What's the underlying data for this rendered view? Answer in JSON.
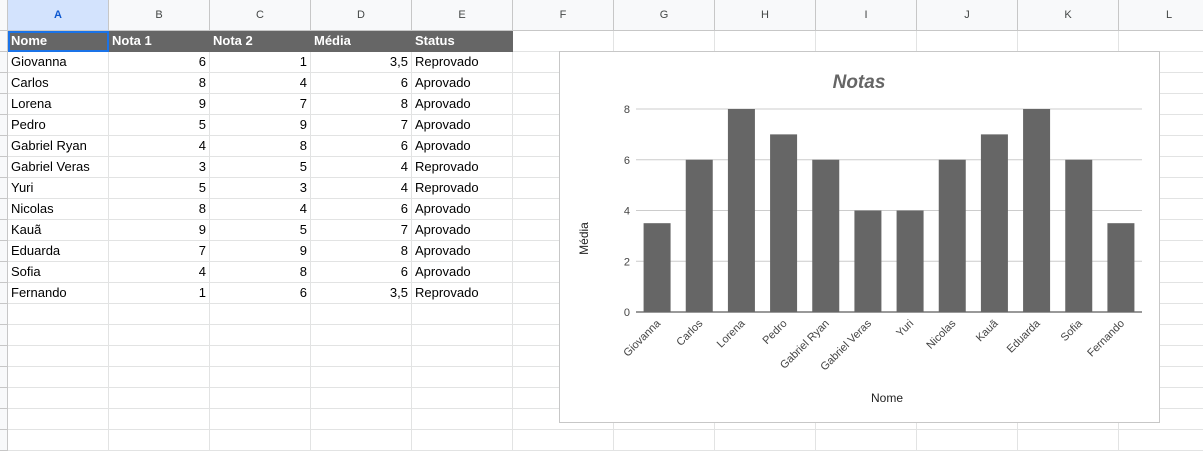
{
  "columns": [
    "A",
    "B",
    "C",
    "D",
    "E",
    "F",
    "G",
    "H",
    "I",
    "J",
    "K",
    "L"
  ],
  "table": {
    "headers": [
      "Nome",
      "Nota 1",
      "Nota 2",
      "Média",
      "Status"
    ],
    "rows": [
      [
        "Giovanna",
        "6",
        "1",
        "3,5",
        "Reprovado"
      ],
      [
        "Carlos",
        "8",
        "4",
        "6",
        "Aprovado"
      ],
      [
        "Lorena",
        "9",
        "7",
        "8",
        "Aprovado"
      ],
      [
        "Pedro",
        "5",
        "9",
        "7",
        "Aprovado"
      ],
      [
        "Gabriel Ryan",
        "4",
        "8",
        "6",
        "Aprovado"
      ],
      [
        "Gabriel Veras",
        "3",
        "5",
        "4",
        "Reprovado"
      ],
      [
        "Yuri",
        "5",
        "3",
        "4",
        "Reprovado"
      ],
      [
        "Nicolas",
        "8",
        "4",
        "6",
        "Aprovado"
      ],
      [
        "Kauã",
        "9",
        "5",
        "7",
        "Aprovado"
      ],
      [
        "Eduarda",
        "7",
        "9",
        "8",
        "Aprovado"
      ],
      [
        "Sofia",
        "4",
        "8",
        "6",
        "Aprovado"
      ],
      [
        "Fernando",
        "1",
        "6",
        "3,5",
        "Reprovado"
      ]
    ]
  },
  "chart_data": {
    "type": "bar",
    "title": "Notas",
    "xlabel": "Nome",
    "ylabel": "Média",
    "categories": [
      "Giovanna",
      "Carlos",
      "Lorena",
      "Pedro",
      "Gabriel Ryan",
      "Gabriel Veras",
      "Yuri",
      "Nicolas",
      "Kauã",
      "Eduarda",
      "Sofia",
      "Fernando"
    ],
    "values": [
      3.5,
      6,
      8,
      7,
      6,
      4,
      4,
      6,
      7,
      8,
      6,
      3.5
    ],
    "ylim": [
      0,
      8
    ],
    "yticks": [
      "0",
      "2",
      "4",
      "6",
      "8"
    ],
    "grid": true,
    "bar_color": "#666666"
  },
  "colors": {
    "header_fill": "#666666",
    "selection": "#1a73e8"
  }
}
